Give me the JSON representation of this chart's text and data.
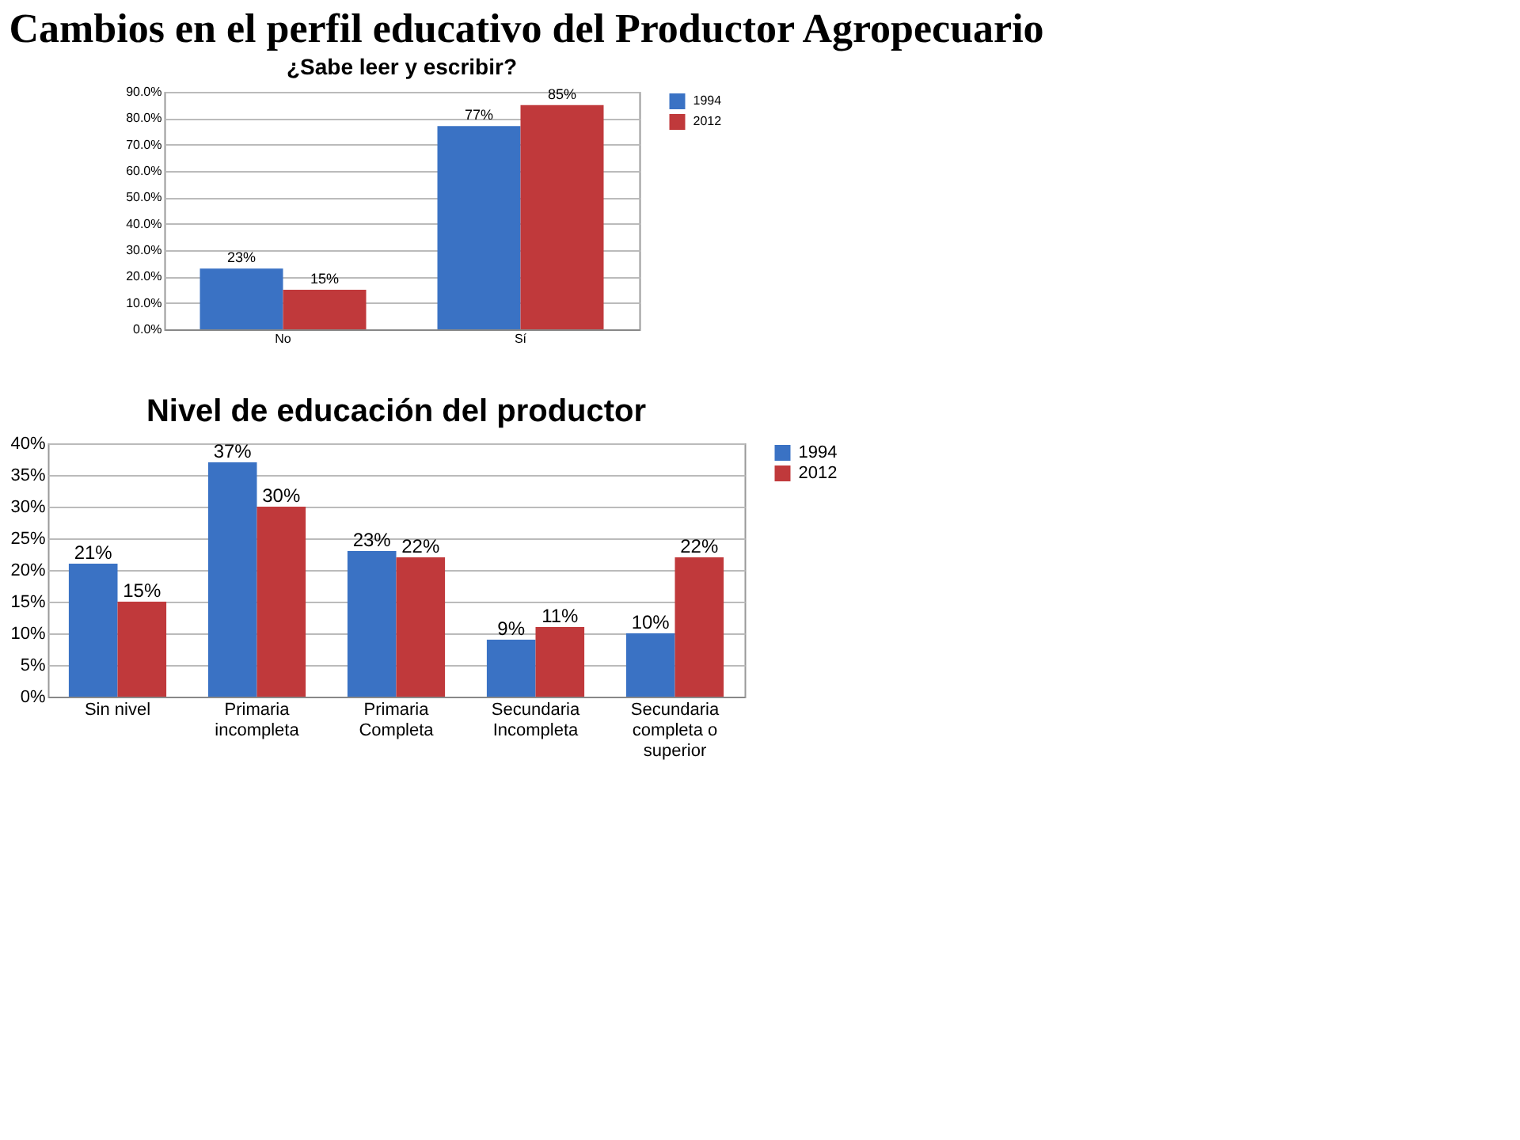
{
  "chart_data": [
    {
      "type": "bar",
      "title": "¿Sabe leer y escribir?",
      "annotations": [
        "Cambios en el perfil educativo del Productor Agropecuario"
      ],
      "categories": [
        "No",
        "Sí"
      ],
      "series": [
        {
          "name": "1994",
          "color": "#3a72c4",
          "values": [
            23,
            77
          ],
          "value_labels": [
            "23%",
            "77%"
          ]
        },
        {
          "name": "2012",
          "color": "#c0393b",
          "values": [
            15,
            85
          ],
          "value_labels": [
            "15%",
            "85%"
          ]
        }
      ],
      "ylim": [
        0,
        90
      ],
      "yticks": [
        {
          "value": 0,
          "label": "0.0%"
        },
        {
          "value": 10,
          "label": "10.0%"
        },
        {
          "value": 20,
          "label": "20.0%"
        },
        {
          "value": 30,
          "label": "30.0%"
        },
        {
          "value": 40,
          "label": "40.0%"
        },
        {
          "value": 50,
          "label": "50.0%"
        },
        {
          "value": 60,
          "label": "60.0%"
        },
        {
          "value": 70,
          "label": "70.0%"
        },
        {
          "value": 80,
          "label": "80.0%"
        },
        {
          "value": 90,
          "label": "90.0%"
        }
      ],
      "grid": "y",
      "legend": "right"
    },
    {
      "type": "bar",
      "title": "Nivel de educación del productor",
      "categories": [
        "Sin nivel",
        "Primaria incompleta",
        "Primaria Completa",
        "Secundaria Incompleta",
        "Secundaria completa o superior"
      ],
      "series": [
        {
          "name": "1994",
          "color": "#3a72c4",
          "values": [
            21,
            37,
            23,
            9,
            10
          ],
          "value_labels": [
            "21%",
            "37%",
            "23%",
            "9%",
            "10%"
          ]
        },
        {
          "name": "2012",
          "color": "#c0393b",
          "values": [
            15,
            30,
            22,
            11,
            22
          ],
          "value_labels": [
            "15%",
            "30%",
            "22%",
            "11%",
            "22%"
          ]
        }
      ],
      "ylim": [
        0,
        40
      ],
      "yticks": [
        {
          "value": 0,
          "label": "0%"
        },
        {
          "value": 5,
          "label": "5%"
        },
        {
          "value": 10,
          "label": "10%"
        },
        {
          "value": 15,
          "label": "15%"
        },
        {
          "value": 20,
          "label": "20%"
        },
        {
          "value": 25,
          "label": "25%"
        },
        {
          "value": 30,
          "label": "30%"
        },
        {
          "value": 35,
          "label": "35%"
        },
        {
          "value": 40,
          "label": "40%"
        }
      ],
      "grid": "y",
      "legend": "right"
    }
  ]
}
